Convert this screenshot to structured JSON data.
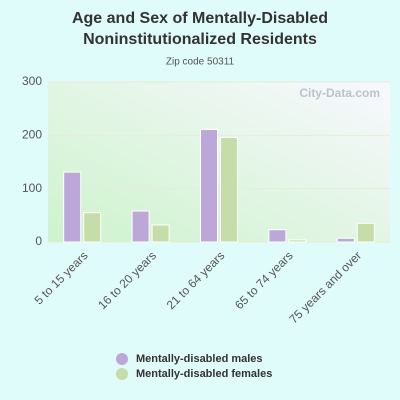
{
  "chart_data": {
    "type": "bar",
    "title": "Age and Sex of Mentally-Disabled Noninstitutionalized Residents",
    "subtitle": "Zip code 50311",
    "watermark": "City-Data.com",
    "categories": [
      "5 to 15 years",
      "16 to 20 years",
      "21 to 64 years",
      "65 to 74 years",
      "75 years and over"
    ],
    "series": [
      {
        "name": "Mentally-disabled males",
        "color": "#bba8d9",
        "values": [
          131,
          58,
          211,
          23,
          7
        ]
      },
      {
        "name": "Mentally-disabled females",
        "color": "#c6dca9",
        "values": [
          55,
          32,
          196,
          4,
          35
        ]
      }
    ],
    "ylim": [
      0,
      300
    ],
    "yticks": [
      0,
      100,
      200,
      300
    ],
    "grid": true
  }
}
